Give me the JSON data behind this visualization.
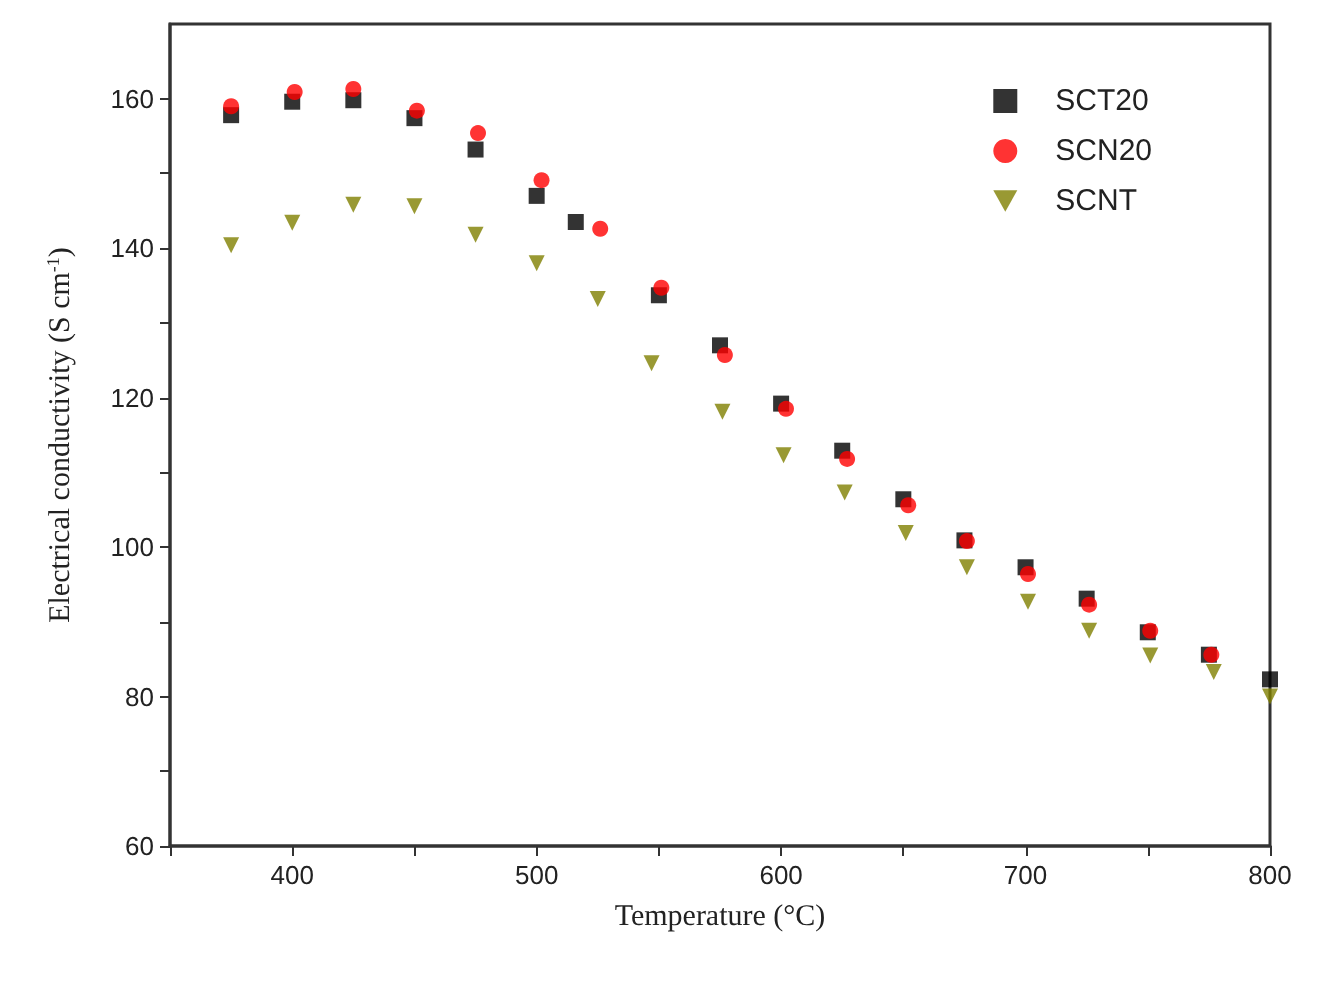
{
  "chart_data": {
    "type": "scatter",
    "xlabel": "Temperature (°C)",
    "ylabel": "Electrical conductivity (S cm$^{-1}$)",
    "xlim": [
      350,
      800
    ],
    "ylim": [
      60,
      170
    ],
    "xticks": [
      {
        "value": 350,
        "label": null
      },
      400,
      {
        "value": 450,
        "label": null
      },
      500,
      {
        "value": 550,
        "label": null
      },
      600,
      {
        "value": 650,
        "label": null
      },
      700,
      {
        "value": 750,
        "label": null
      },
      800
    ],
    "yticks": [
      60,
      {
        "value": 70,
        "label": null
      },
      80,
      {
        "value": 90,
        "label": null
      },
      100,
      {
        "value": 110,
        "label": null
      },
      120,
      {
        "value": 130,
        "label": null
      },
      140,
      {
        "value": 150,
        "label": null
      },
      160
    ],
    "grid": false,
    "legend": "top right",
    "series": [
      {
        "name": "SCT20",
        "color": "#000000",
        "marker": "square",
        "x": [
          375,
          400,
          425,
          450,
          475,
          500,
          516,
          550,
          575,
          600,
          625,
          650,
          675,
          700,
          725,
          750,
          775,
          800
        ],
        "values": [
          157.8,
          159.6,
          159.8,
          157.4,
          153.2,
          147.0,
          143.5,
          133.7,
          127.0,
          119.2,
          112.9,
          106.4,
          100.9,
          97.3,
          93.1,
          88.6,
          85.6,
          82.3
        ]
      },
      {
        "name": "SCN20",
        "color": "#ff0000",
        "marker": "circle",
        "x": [
          375,
          401,
          425,
          451,
          476,
          502,
          526,
          551,
          577,
          602,
          627,
          652,
          676,
          701,
          726,
          751,
          776
        ],
        "values": [
          159.0,
          160.9,
          161.3,
          158.4,
          155.4,
          149.1,
          142.6,
          134.7,
          125.7,
          118.5,
          111.8,
          105.6,
          100.8,
          96.4,
          92.3,
          88.8,
          85.6
        ]
      },
      {
        "name": "SCNT",
        "color": "#808000",
        "marker": "triangle-down",
        "x": [
          375,
          400,
          425,
          450,
          475,
          500,
          525,
          547,
          576,
          601,
          626,
          651,
          676,
          701,
          726,
          751,
          777,
          800
        ],
        "values": [
          140.4,
          143.4,
          145.8,
          145.6,
          141.8,
          138.0,
          133.2,
          124.6,
          118.1,
          112.3,
          107.3,
          101.9,
          97.3,
          92.7,
          88.8,
          85.5,
          83.3,
          80.0
        ]
      }
    ]
  }
}
